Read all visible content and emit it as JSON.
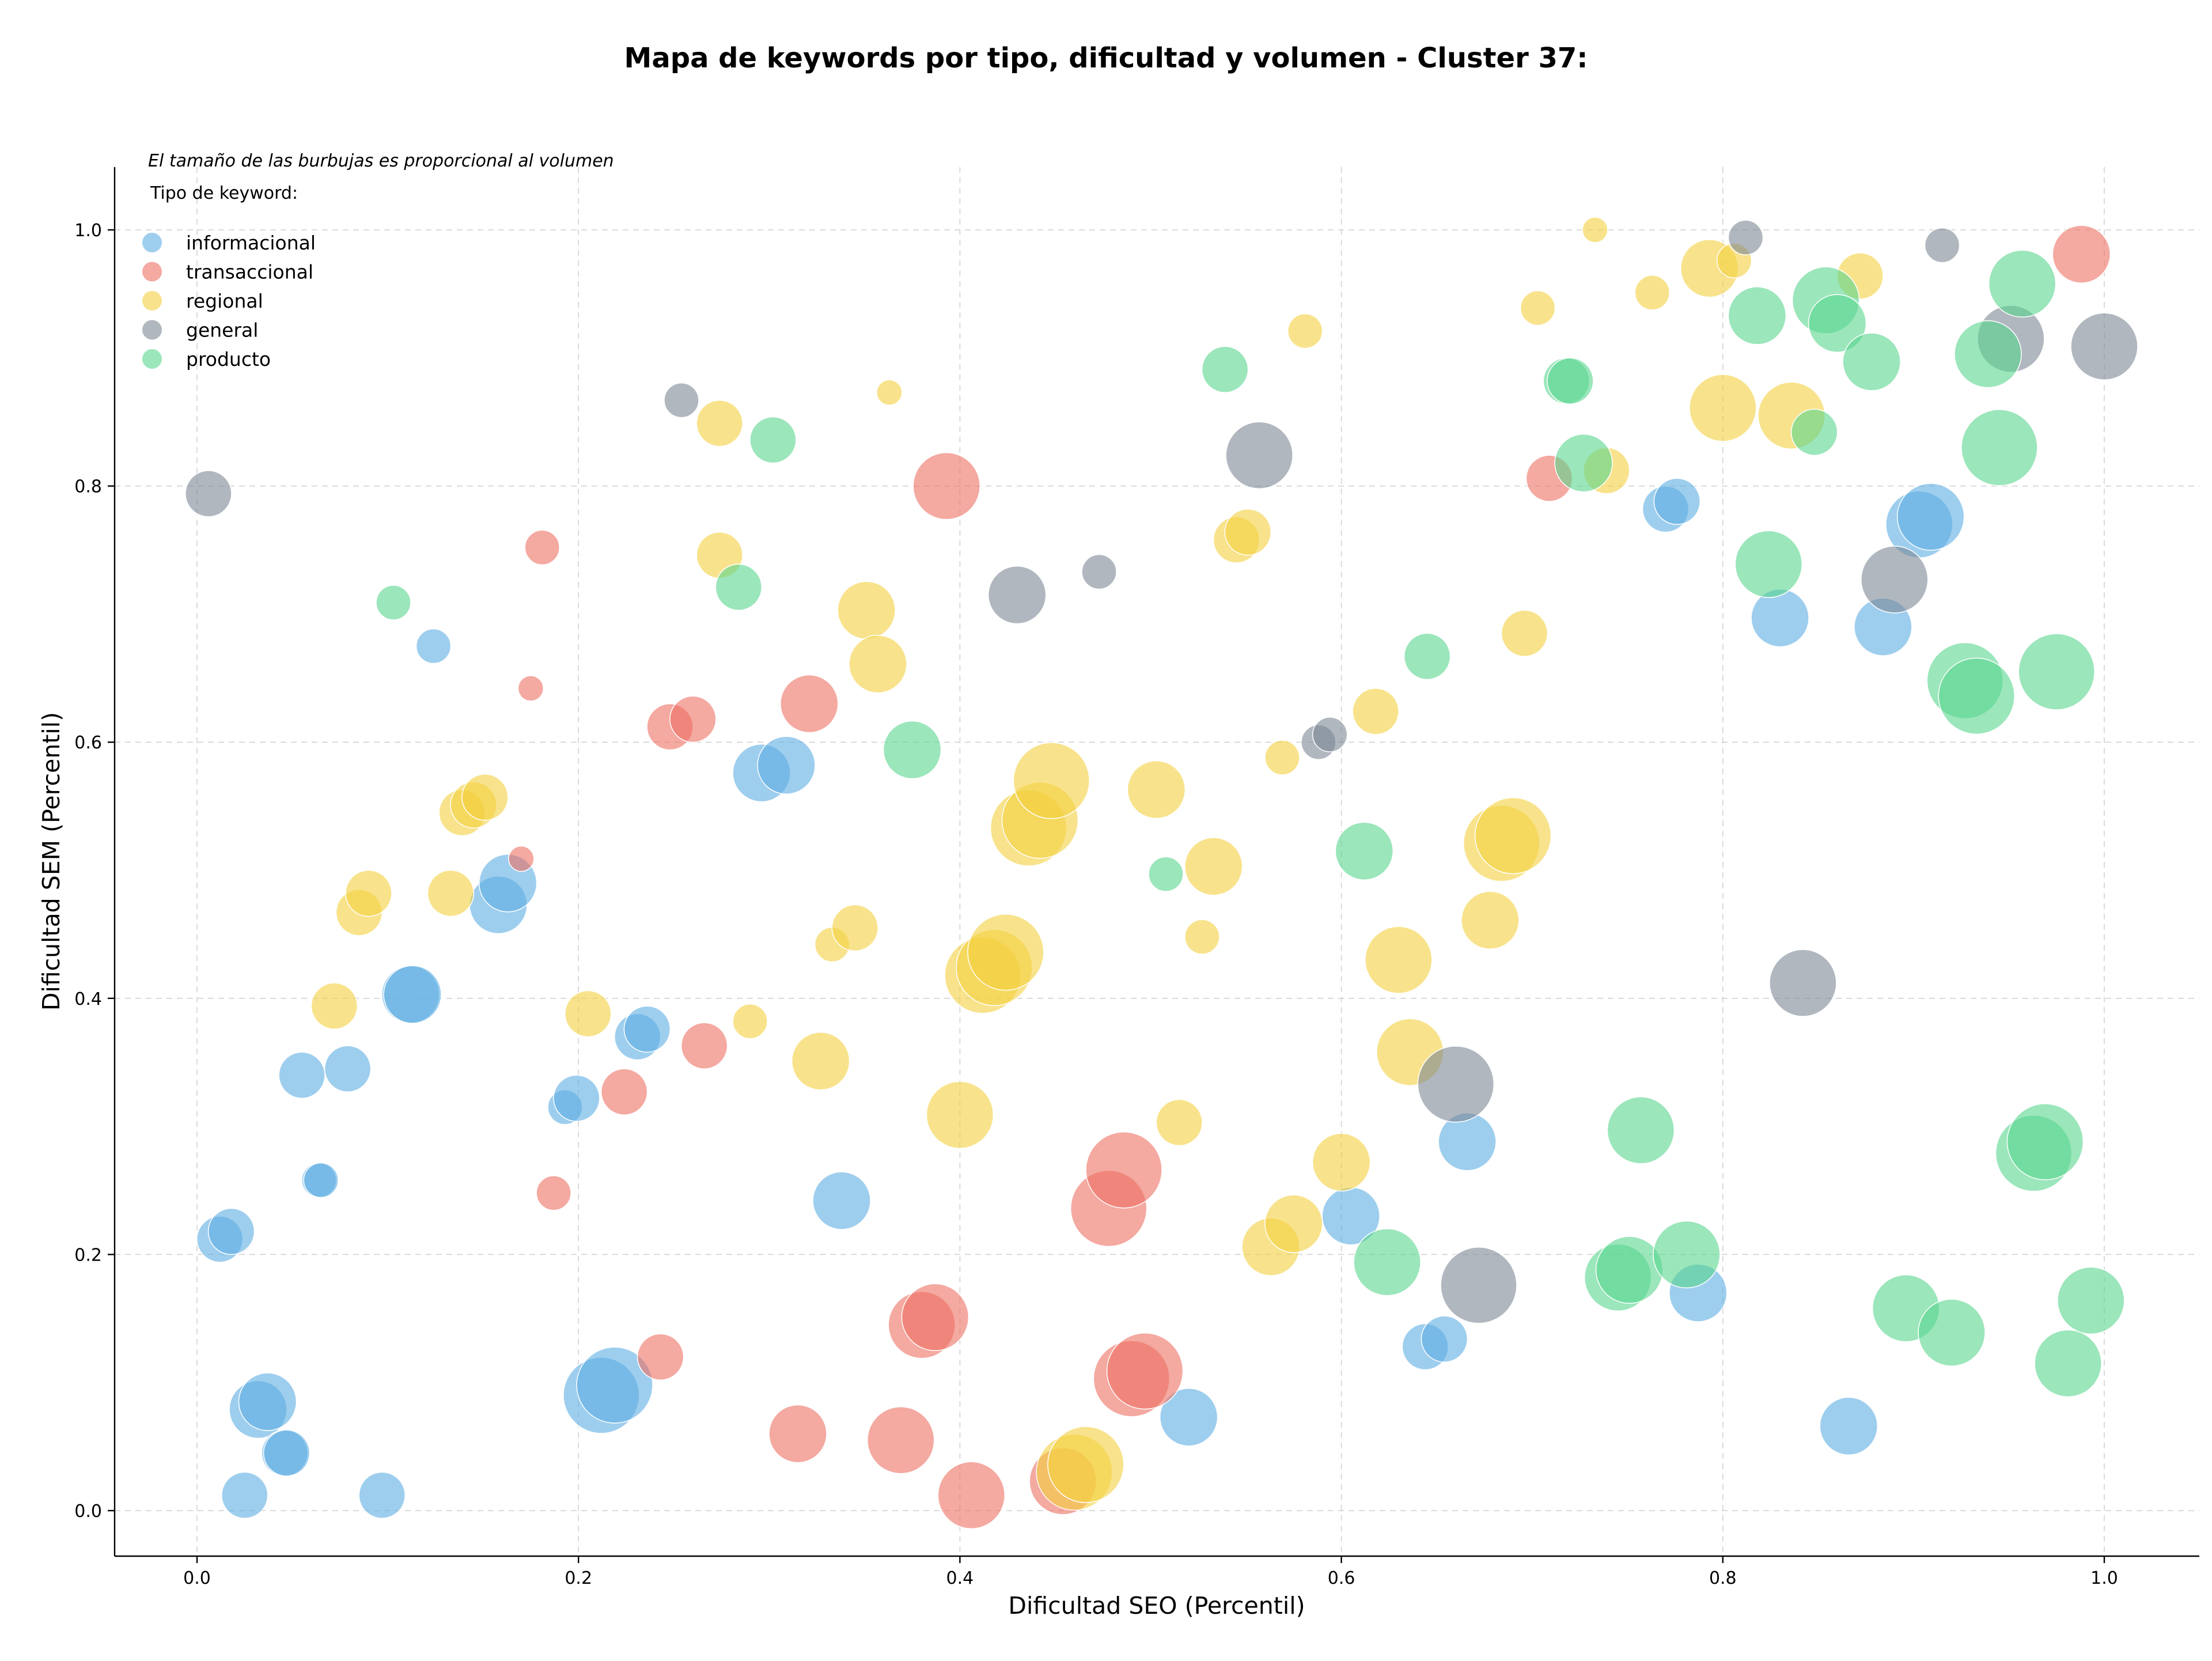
{
  "chart_data": {
    "type": "scatter",
    "title": "Mapa de keywords por tipo, dificultad y volumen - Cluster 37:",
    "xlabel": "Dificultad SEO (Percentil)",
    "ylabel": "Dificultad SEM (Percentil)",
    "xlim": [
      -0.04,
      1.05
    ],
    "ylim": [
      -0.035,
      1.05
    ],
    "xticks": [
      "0.0",
      "0.2",
      "0.4",
      "0.6",
      "0.8",
      "1.0"
    ],
    "yticks": [
      "0.0",
      "0.2",
      "0.4",
      "0.6",
      "0.8",
      "1.0"
    ],
    "grid": true,
    "note": "El tamaño de las burbujas es proporcional al volumen",
    "legend": {
      "title": "Tipo de keyword:",
      "placement": "top-left"
    },
    "series": [
      {
        "name": "informacional",
        "color": "#5DADE2",
        "points": [
          [
            0.025,
            0.012,
            3
          ],
          [
            0.032,
            0.079,
            4
          ],
          [
            0.037,
            0.085,
            4
          ],
          [
            0.046,
            0.045,
            3
          ],
          [
            0.047,
            0.045,
            3
          ],
          [
            0.012,
            0.212,
            3
          ],
          [
            0.018,
            0.218,
            3
          ],
          [
            0.064,
            0.258,
            2
          ],
          [
            0.065,
            0.258,
            2
          ],
          [
            0.055,
            0.34,
            3
          ],
          [
            0.079,
            0.345,
            3
          ],
          [
            0.097,
            0.012,
            3
          ],
          [
            0.112,
            0.403,
            4
          ],
          [
            0.113,
            0.403,
            4
          ],
          [
            0.124,
            0.675,
            2
          ],
          [
            0.158,
            0.473,
            4
          ],
          [
            0.163,
            0.49,
            4
          ],
          [
            0.193,
            0.315,
            2
          ],
          [
            0.199,
            0.322,
            3
          ],
          [
            0.212,
            0.09,
            6
          ],
          [
            0.219,
            0.098,
            6
          ],
          [
            0.231,
            0.37,
            3
          ],
          [
            0.236,
            0.376,
            3
          ],
          [
            0.296,
            0.576,
            4
          ],
          [
            0.309,
            0.582,
            4
          ],
          [
            0.338,
            0.242,
            4
          ],
          [
            0.52,
            0.073,
            4
          ],
          [
            0.605,
            0.23,
            4
          ],
          [
            0.644,
            0.128,
            3
          ],
          [
            0.654,
            0.134,
            3
          ],
          [
            0.666,
            0.288,
            4
          ],
          [
            0.77,
            0.782,
            3
          ],
          [
            0.776,
            0.788,
            3
          ],
          [
            0.787,
            0.17,
            4
          ],
          [
            0.83,
            0.697,
            4
          ],
          [
            0.866,
            0.066,
            4
          ],
          [
            0.884,
            0.69,
            4
          ],
          [
            0.903,
            0.77,
            5
          ],
          [
            0.909,
            0.776,
            5
          ]
        ]
      },
      {
        "name": "transaccional",
        "color": "#EC7063",
        "points": [
          [
            0.17,
            0.509,
            1
          ],
          [
            0.175,
            0.642,
            1
          ],
          [
            0.181,
            0.752,
            2
          ],
          [
            0.187,
            0.248,
            2
          ],
          [
            0.224,
            0.327,
            3
          ],
          [
            0.243,
            0.12,
            3
          ],
          [
            0.248,
            0.612,
            3
          ],
          [
            0.26,
            0.618,
            3
          ],
          [
            0.266,
            0.363,
            3
          ],
          [
            0.315,
            0.06,
            4
          ],
          [
            0.321,
            0.63,
            4
          ],
          [
            0.369,
            0.055,
            5
          ],
          [
            0.38,
            0.145,
            5
          ],
          [
            0.387,
            0.151,
            5
          ],
          [
            0.393,
            0.8,
            5
          ],
          [
            0.406,
            0.012,
            5
          ],
          [
            0.454,
            0.023,
            5
          ],
          [
            0.478,
            0.236,
            6
          ],
          [
            0.486,
            0.266,
            6
          ],
          [
            0.49,
            0.103,
            6
          ],
          [
            0.497,
            0.109,
            6
          ],
          [
            0.709,
            0.806,
            3
          ],
          [
            0.988,
            0.981,
            4
          ]
        ]
      },
      {
        "name": "regional",
        "color": "#F4D03F",
        "points": [
          [
            0.072,
            0.394,
            3
          ],
          [
            0.085,
            0.467,
            3
          ],
          [
            0.09,
            0.482,
            3
          ],
          [
            0.133,
            0.482,
            3
          ],
          [
            0.139,
            0.545,
            3
          ],
          [
            0.145,
            0.551,
            3
          ],
          [
            0.151,
            0.557,
            3
          ],
          [
            0.205,
            0.388,
            3
          ],
          [
            0.274,
            0.849,
            3
          ],
          [
            0.274,
            0.746,
            3
          ],
          [
            0.29,
            0.382,
            2
          ],
          [
            0.327,
            0.351,
            4
          ],
          [
            0.333,
            0.442,
            2
          ],
          [
            0.345,
            0.455,
            3
          ],
          [
            0.351,
            0.703,
            4
          ],
          [
            0.357,
            0.661,
            4
          ],
          [
            0.363,
            0.873,
            1
          ],
          [
            0.4,
            0.309,
            5
          ],
          [
            0.412,
            0.418,
            6
          ],
          [
            0.418,
            0.424,
            6
          ],
          [
            0.424,
            0.436,
            6
          ],
          [
            0.436,
            0.533,
            6
          ],
          [
            0.442,
            0.539,
            6
          ],
          [
            0.448,
            0.57,
            6
          ],
          [
            0.46,
            0.03,
            6
          ],
          [
            0.466,
            0.036,
            6
          ],
          [
            0.503,
            0.563,
            4
          ],
          [
            0.515,
            0.303,
            3
          ],
          [
            0.527,
            0.448,
            2
          ],
          [
            0.533,
            0.503,
            4
          ],
          [
            0.545,
            0.758,
            3
          ],
          [
            0.551,
            0.764,
            3
          ],
          [
            0.563,
            0.206,
            4
          ],
          [
            0.569,
            0.588,
            2
          ],
          [
            0.575,
            0.224,
            4
          ],
          [
            0.581,
            0.921,
            2
          ],
          [
            0.6,
            0.272,
            4
          ],
          [
            0.618,
            0.624,
            3
          ],
          [
            0.63,
            0.43,
            5
          ],
          [
            0.636,
            0.358,
            5
          ],
          [
            0.678,
            0.461,
            4
          ],
          [
            0.684,
            0.521,
            6
          ],
          [
            0.69,
            0.527,
            6
          ],
          [
            0.696,
            0.685,
            3
          ],
          [
            0.703,
            0.939,
            2
          ],
          [
            0.733,
            1.0,
            1
          ],
          [
            0.739,
            0.812,
            3
          ],
          [
            0.763,
            0.951,
            2
          ],
          [
            0.793,
            0.97,
            4
          ],
          [
            0.8,
            0.861,
            5
          ],
          [
            0.806,
            0.976,
            2
          ],
          [
            0.836,
            0.855,
            5
          ],
          [
            0.872,
            0.964,
            3
          ]
        ]
      },
      {
        "name": "general",
        "color": "#7B8794",
        "points": [
          [
            0.006,
            0.794,
            3
          ],
          [
            0.254,
            0.867,
            2
          ],
          [
            0.43,
            0.715,
            4
          ],
          [
            0.473,
            0.733,
            2
          ],
          [
            0.557,
            0.824,
            5
          ],
          [
            0.588,
            0.6,
            2
          ],
          [
            0.594,
            0.606,
            2
          ],
          [
            0.66,
            0.333,
            6
          ],
          [
            0.672,
            0.176,
            6
          ],
          [
            0.812,
            0.994,
            2
          ],
          [
            0.842,
            0.412,
            5
          ],
          [
            0.89,
            0.727,
            5
          ],
          [
            0.915,
            0.988,
            2
          ],
          [
            0.951,
            0.915,
            5
          ],
          [
            1.0,
            0.909,
            5
          ]
        ]
      },
      {
        "name": "producto",
        "color": "#58D68D",
        "points": [
          [
            0.103,
            0.709,
            2
          ],
          [
            0.284,
            0.721,
            3
          ],
          [
            0.302,
            0.836,
            3
          ],
          [
            0.375,
            0.594,
            4
          ],
          [
            0.508,
            0.497,
            2
          ],
          [
            0.539,
            0.891,
            3
          ],
          [
            0.612,
            0.515,
            4
          ],
          [
            0.624,
            0.194,
            5
          ],
          [
            0.645,
            0.667,
            3
          ],
          [
            0.718,
            0.882,
            3
          ],
          [
            0.72,
            0.882,
            3
          ],
          [
            0.727,
            0.818,
            4
          ],
          [
            0.745,
            0.182,
            5
          ],
          [
            0.751,
            0.188,
            5
          ],
          [
            0.757,
            0.297,
            5
          ],
          [
            0.781,
            0.2,
            5
          ],
          [
            0.818,
            0.933,
            4
          ],
          [
            0.824,
            0.739,
            5
          ],
          [
            0.848,
            0.842,
            3
          ],
          [
            0.854,
            0.945,
            5
          ],
          [
            0.86,
            0.927,
            4
          ],
          [
            0.878,
            0.897,
            4
          ],
          [
            0.896,
            0.158,
            5
          ],
          [
            0.92,
            0.139,
            5
          ],
          [
            0.927,
            0.648,
            6
          ],
          [
            0.933,
            0.636,
            6
          ],
          [
            0.939,
            0.903,
            5
          ],
          [
            0.945,
            0.83,
            6
          ],
          [
            0.957,
            0.958,
            5
          ],
          [
            0.963,
            0.279,
            6
          ],
          [
            0.969,
            0.288,
            6
          ],
          [
            0.975,
            0.655,
            6
          ],
          [
            0.981,
            0.115,
            5
          ],
          [
            0.993,
            0.164,
            5
          ]
        ]
      }
    ]
  }
}
